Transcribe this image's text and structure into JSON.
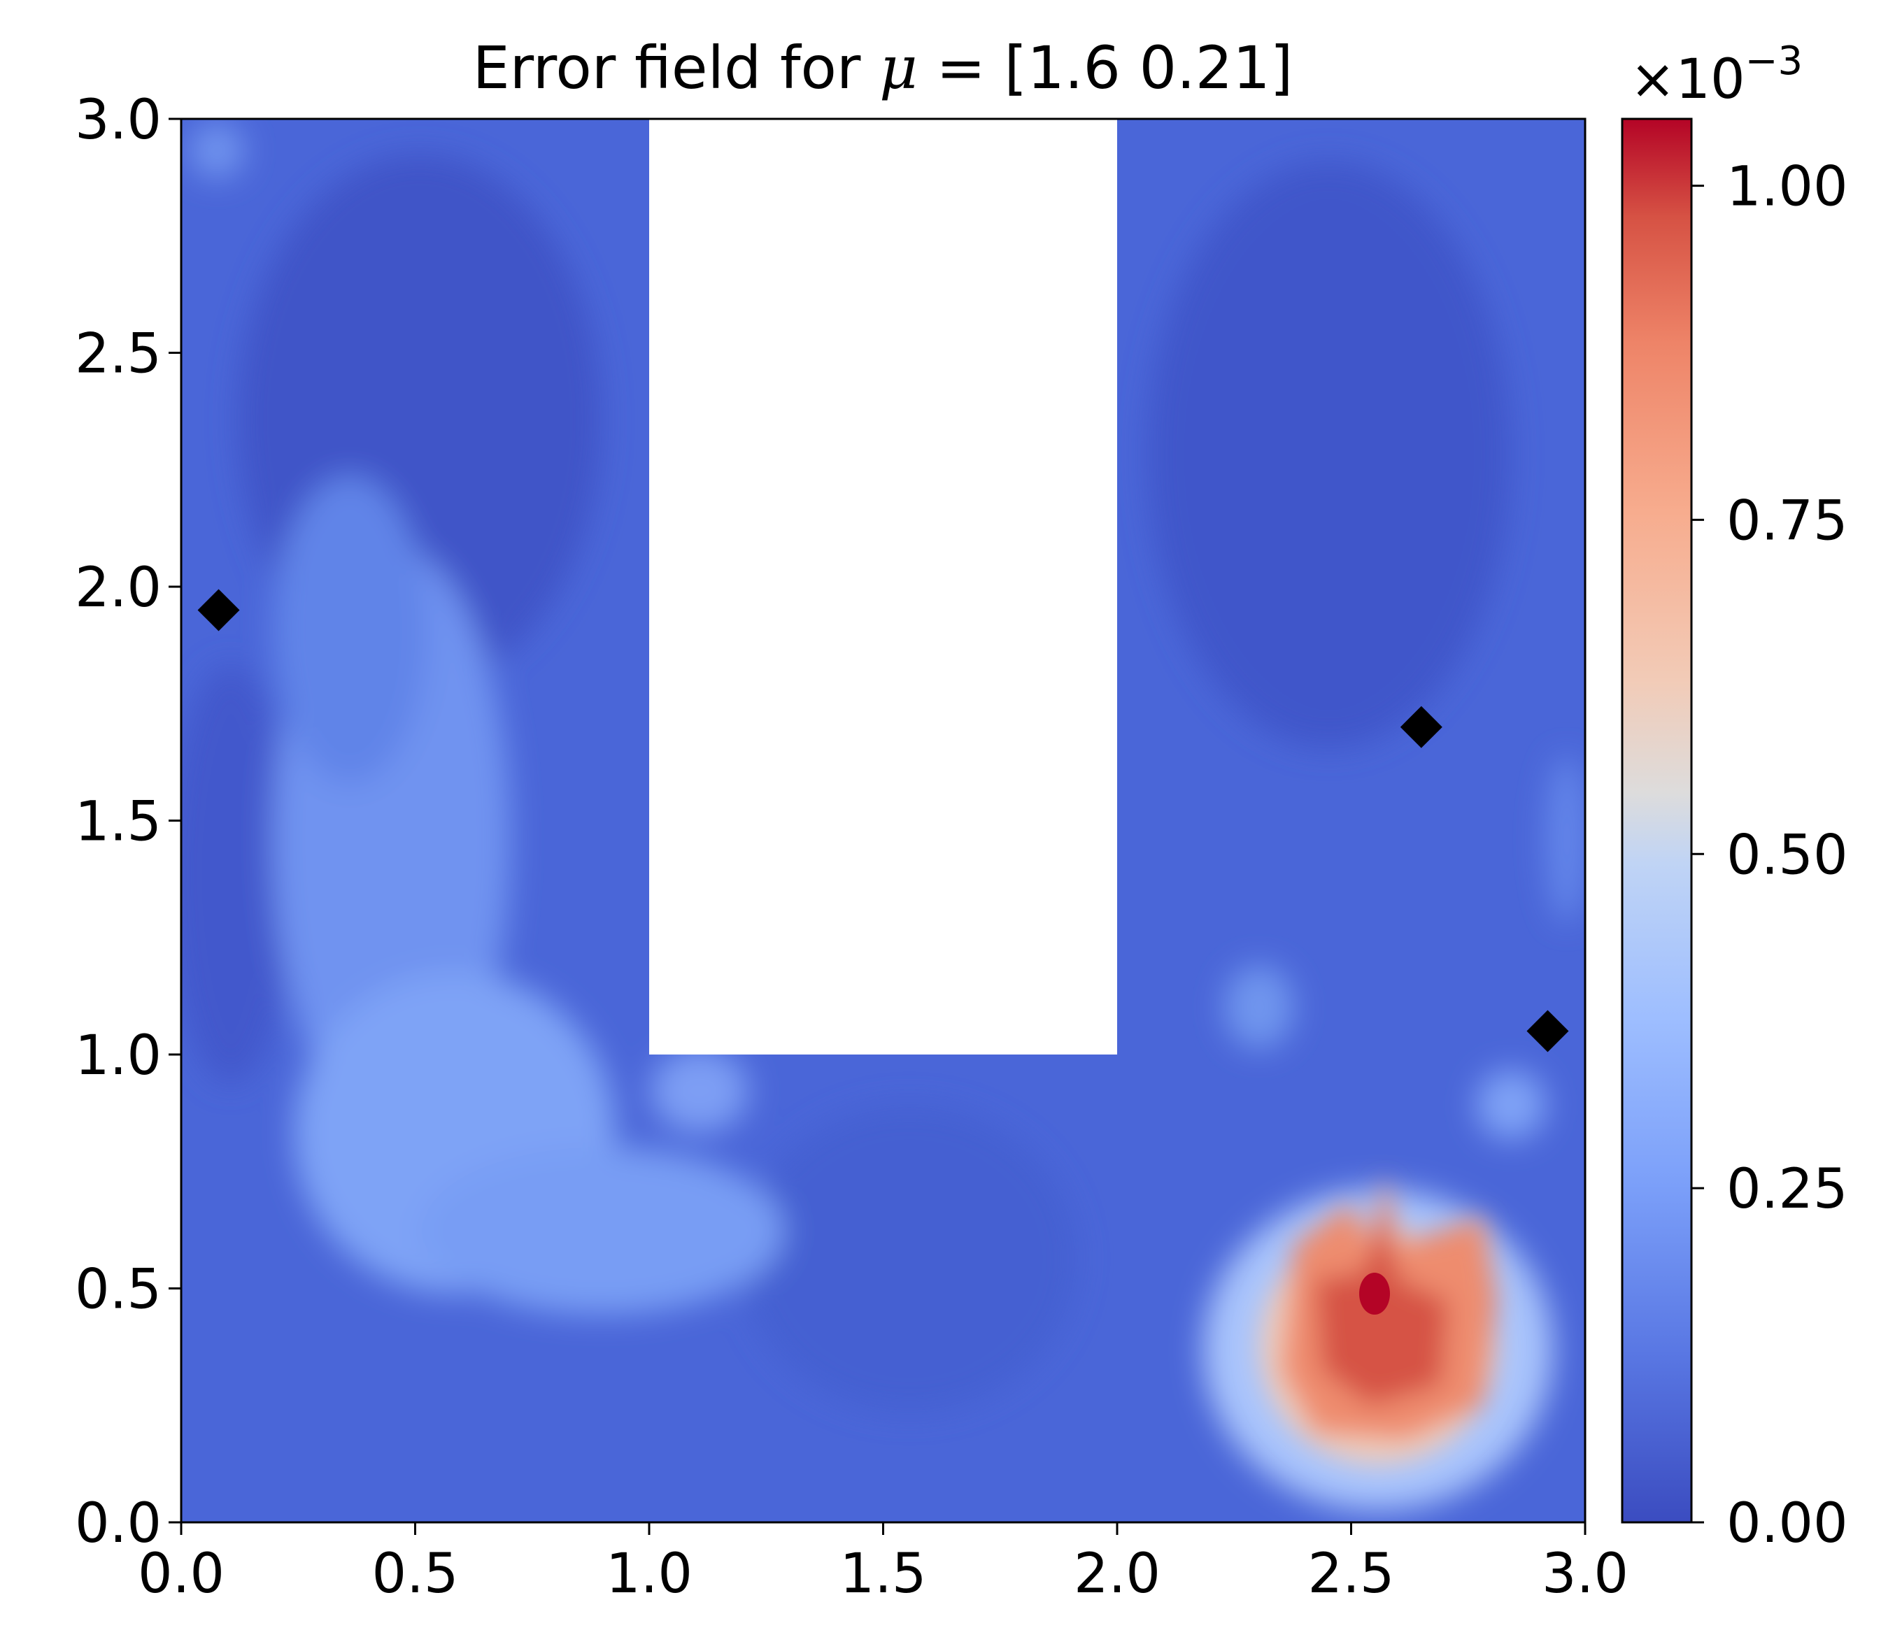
{
  "chart_data": {
    "type": "heatmap",
    "title": "Error field for μ = [1.6  0.21]",
    "title_parts": {
      "prefix": "Error field for ",
      "symbol": "μ",
      "suffix": " = [1.6  0.21]"
    },
    "xlim": [
      0,
      3
    ],
    "ylim": [
      0,
      3
    ],
    "xticks": [
      "0.0",
      "0.5",
      "1.0",
      "1.5",
      "2.0",
      "2.5",
      "3.0"
    ],
    "yticks": [
      "0.0",
      "0.5",
      "1.0",
      "1.5",
      "2.0",
      "2.5",
      "3.0"
    ],
    "colormap": "coolwarm",
    "colorbar": {
      "range": [
        0,
        0.00105
      ],
      "ticks": [
        "0.00",
        "0.25",
        "0.50",
        "0.75",
        "1.00"
      ],
      "tick_values": [
        0,
        0.25,
        0.5,
        0.75,
        1.0
      ],
      "multiplier_base": "×10",
      "multiplier_exp": "−3"
    },
    "masked_region": {
      "x": [
        1.0,
        2.0
      ],
      "y": [
        1.0,
        3.0
      ]
    },
    "hotspot": {
      "x": 2.5,
      "y": 0.5,
      "peak": 0.00105
    },
    "markers": [
      {
        "x": 0.08,
        "y": 1.95
      },
      {
        "x": 2.65,
        "y": 1.7
      },
      {
        "x": 2.92,
        "y": 1.05
      }
    ],
    "grid": false
  }
}
